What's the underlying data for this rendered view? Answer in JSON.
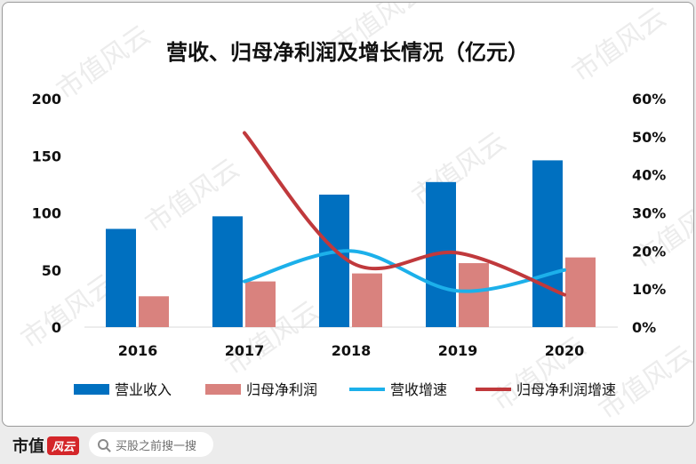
{
  "chart_data": {
    "type": "bar",
    "title": "营收、归母净利润及增长情况（亿元）",
    "categories": [
      "2016",
      "2017",
      "2018",
      "2019",
      "2020"
    ],
    "y_left": {
      "ticks": [
        "200",
        "150",
        "100",
        "50",
        "0"
      ],
      "ylim": [
        0,
        200
      ]
    },
    "y_right": {
      "ticks": [
        "60%",
        "50%",
        "40%",
        "30%",
        "20%",
        "10%",
        "0%"
      ],
      "ylim": [
        0,
        0.6
      ]
    },
    "series": [
      {
        "name": "营业收入",
        "kind": "bar",
        "axis": "left",
        "color": "#0070c0",
        "values": [
          86,
          97,
          116,
          127,
          146
        ]
      },
      {
        "name": "归母净利润",
        "kind": "bar",
        "axis": "left",
        "color": "#d9827e",
        "values": [
          27,
          40,
          47,
          56,
          61
        ]
      },
      {
        "name": "营收增速",
        "kind": "line",
        "axis": "right",
        "color": "#1cb0ea",
        "values": [
          null,
          0.12,
          0.2,
          0.095,
          0.15
        ]
      },
      {
        "name": "归母净利润增速",
        "kind": "line",
        "axis": "right",
        "color": "#c0393c",
        "values": [
          null,
          0.51,
          0.17,
          0.195,
          0.085
        ]
      }
    ],
    "grid": false,
    "legend": "bottom"
  },
  "watermark": {
    "text": "市值风云"
  },
  "footer": {
    "brand": "市值",
    "brand_logo": "风云",
    "search_placeholder": "买股之前搜一搜"
  }
}
